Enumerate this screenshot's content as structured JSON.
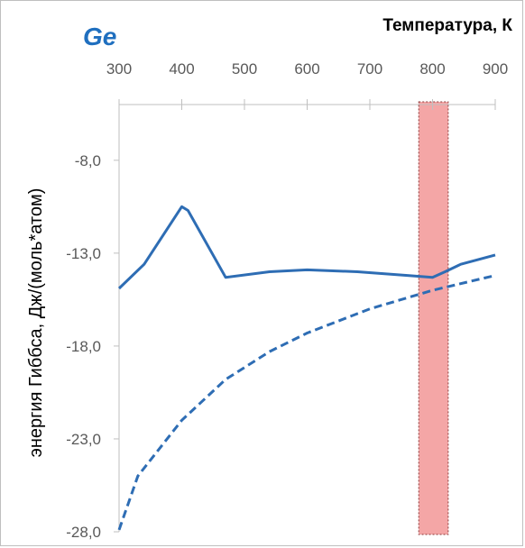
{
  "chart_data": {
    "type": "line",
    "title": "",
    "annotation": "Ge",
    "xlabel": "Температура, К",
    "ylabel": "энергия Гиббса, Дж/(моль*атом)",
    "xlim": [
      300,
      900
    ],
    "ylim": [
      -28.0,
      -5.0
    ],
    "x_axis_position": "top",
    "x_ticks": [
      300,
      400,
      500,
      600,
      700,
      800,
      900
    ],
    "x_tick_labels": [
      "300",
      "400",
      "500",
      "600",
      "700",
      "800",
      "900"
    ],
    "y_ticks": [
      -8.0,
      -13.0,
      -18.0,
      -23.0,
      -28.0
    ],
    "y_tick_labels": [
      "-8,0",
      "-13,0",
      "-18,0",
      "-23,0",
      "-28,0"
    ],
    "grid": false,
    "highlight_band": {
      "x_from": 778,
      "x_to": 825,
      "color": "#f4a6a6"
    },
    "series": [
      {
        "style": "solid",
        "color": "#2e6db4",
        "x": [
          300,
          340,
          400,
          410,
          470,
          540,
          600,
          680,
          760,
          800,
          820,
          845,
          900
        ],
        "y": [
          -14.9,
          -13.6,
          -10.5,
          -10.7,
          -14.3,
          -14.0,
          -13.9,
          -14.0,
          -14.2,
          -14.3,
          -14.0,
          -13.6,
          -13.1
        ]
      },
      {
        "style": "dashed",
        "color": "#2e6db4",
        "x": [
          300,
          330,
          400,
          470,
          540,
          600,
          700,
          800,
          900
        ],
        "y": [
          -27.9,
          -25.0,
          -22.0,
          -19.8,
          -18.3,
          -17.3,
          -16.0,
          -15.0,
          -14.2
        ]
      }
    ]
  }
}
